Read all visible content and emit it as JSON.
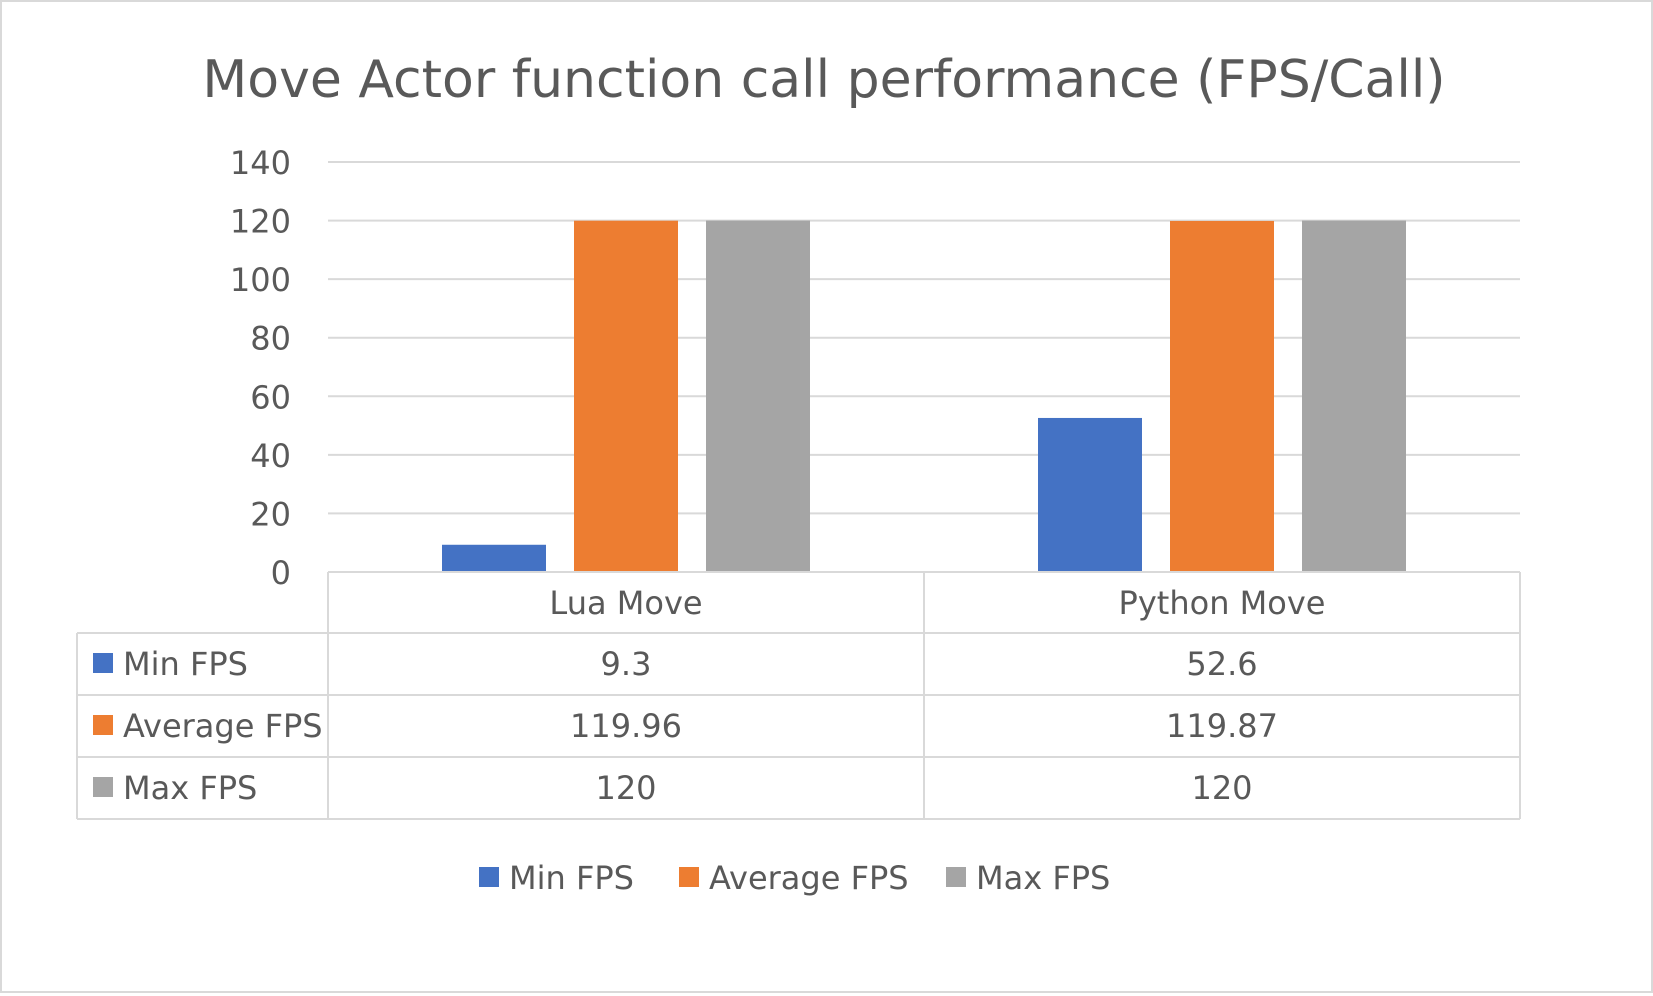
{
  "chart_data": {
    "type": "bar",
    "title": "Move Actor function call performance (FPS/Call)",
    "categories": [
      "Lua Move",
      "Python Move"
    ],
    "series": [
      {
        "name": "Min FPS",
        "values": [
          9.3,
          52.6
        ],
        "labels": [
          "9.3",
          "52.6"
        ],
        "color": "#4472c4"
      },
      {
        "name": "Average FPS",
        "values": [
          119.96,
          119.87
        ],
        "labels": [
          "119.96",
          "119.87"
        ],
        "color": "#ed7d31"
      },
      {
        "name": "Max FPS",
        "values": [
          120,
          120
        ],
        "labels": [
          "120",
          "120"
        ],
        "color": "#a5a5a5"
      }
    ],
    "ylim": [
      0,
      140
    ],
    "yticks": [
      "0",
      "20",
      "40",
      "60",
      "80",
      "100",
      "120",
      "140"
    ],
    "grid": true,
    "data_table": true,
    "legend_position": "bottom"
  },
  "colors": {
    "grid": "#d9d9d9",
    "text": "#595959",
    "table_border": "#d9d9d9"
  }
}
